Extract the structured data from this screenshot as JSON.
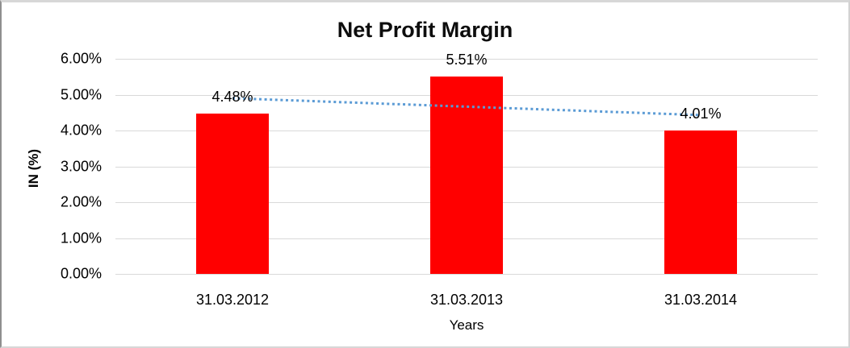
{
  "chart_data": {
    "type": "bar",
    "title": "Net Profit Margin",
    "categories": [
      "31.03.2012",
      "31.03.2013",
      "31.03.2014"
    ],
    "values": [
      4.48,
      5.51,
      4.01
    ],
    "data_labels": [
      "4.48%",
      "5.51%",
      "4.01%"
    ],
    "xlabel": "Years",
    "ylabel": "IN (%)",
    "ylim": [
      0,
      6
    ],
    "ytick_labels": [
      "0.00%",
      "1.00%",
      "2.00%",
      "3.00%",
      "4.00%",
      "5.00%",
      "6.00%"
    ],
    "grid": true,
    "legend": "none",
    "bar_color": "#FF0000",
    "gridline_color": "#D9D9D9",
    "text_color": "#000000",
    "trendline": {
      "type": "linear",
      "style": "dotted",
      "color": "#5B9BD5",
      "start_value": 4.9,
      "end_value": 4.43
    }
  }
}
